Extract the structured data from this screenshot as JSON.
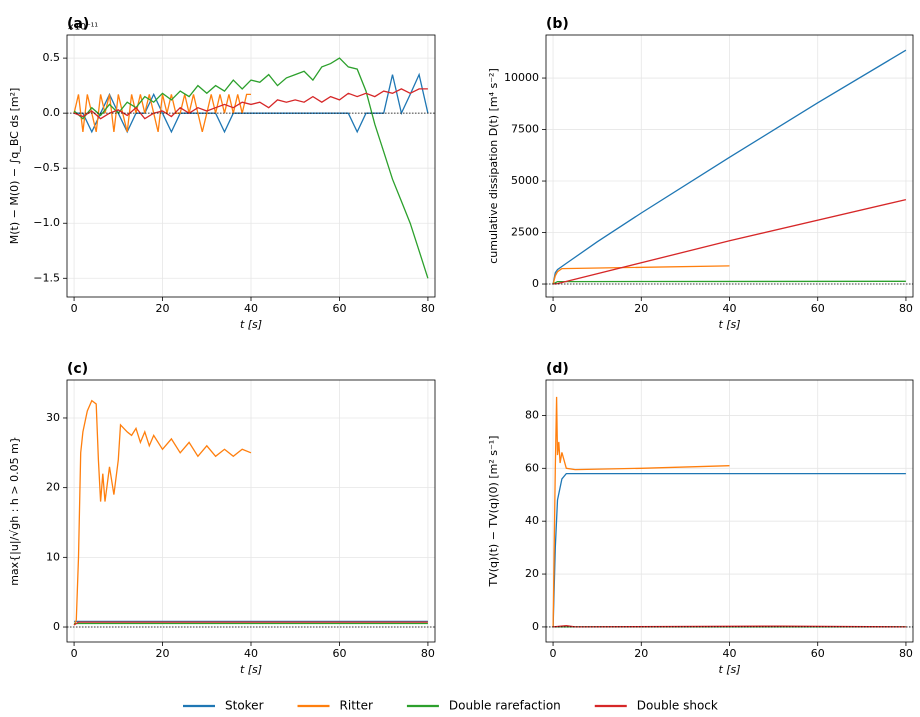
{
  "chart_data": [
    {
      "type": "line",
      "panel_label": "(a)",
      "offset_label": "×10⁻¹¹",
      "xlabel": "t  [s]",
      "ylabel": "M(t) − M(0) − ∫q_BC ds  [m²]",
      "xlim": [
        -1.6,
        81.6
      ],
      "ylim": [
        -1.67,
        0.71
      ],
      "xticks": [
        0,
        20,
        40,
        60,
        80
      ],
      "yticks": [
        {
          "value": -1.5,
          "label": "−1.5"
        },
        {
          "value": -1.0,
          "label": "−1.0"
        },
        {
          "value": -0.5,
          "label": "−0.5"
        },
        {
          "value": 0,
          "label": "0.0"
        },
        0.5
      ],
      "grid": true,
      "hline": 0,
      "series": [
        {
          "name": "Stoker",
          "color": "#1f77b4",
          "x": [
            0,
            2,
            4,
            6,
            8,
            10,
            12,
            14,
            16,
            18,
            20,
            22,
            24,
            26,
            28,
            30,
            32,
            34,
            36,
            38,
            40,
            42,
            44,
            46,
            48,
            50,
            52,
            54,
            56,
            58,
            60,
            62,
            64,
            66,
            68,
            70,
            72,
            74,
            76,
            78,
            80
          ],
          "values": [
            0,
            0,
            -0.17,
            0,
            0.17,
            0,
            -0.17,
            0,
            0,
            0.17,
            0,
            -0.17,
            0,
            0,
            0,
            0,
            0,
            -0.17,
            0,
            0,
            0,
            0,
            0,
            0,
            0,
            0,
            0,
            0,
            0,
            0,
            0,
            0,
            -0.17,
            0,
            0,
            0,
            0.35,
            0,
            0.17,
            0.35,
            0
          ]
        },
        {
          "name": "Ritter",
          "color": "#ff7f0e",
          "x": [
            0,
            1,
            2,
            3,
            4,
            5,
            6,
            7,
            8,
            9,
            10,
            11,
            12,
            13,
            14,
            15,
            16,
            17,
            18,
            19,
            20,
            21,
            22,
            23,
            24,
            25,
            26,
            27,
            28,
            29,
            30,
            31,
            32,
            33,
            34,
            35,
            36,
            37,
            38,
            39,
            40
          ],
          "values": [
            0,
            0.17,
            -0.17,
            0.17,
            0,
            -0.17,
            0.17,
            0,
            0.17,
            -0.17,
            0.17,
            0,
            -0.17,
            0.17,
            0,
            0.17,
            0,
            0.17,
            0,
            -0.17,
            0.17,
            0,
            0.17,
            0,
            0,
            0.17,
            0,
            0.17,
            0,
            -0.17,
            0,
            0.17,
            0,
            0.17,
            0,
            0.17,
            0,
            0.17,
            0,
            0.17,
            0.17
          ]
        },
        {
          "name": "Double rarefaction",
          "color": "#2ca02c",
          "x": [
            0,
            2,
            4,
            6,
            8,
            10,
            12,
            14,
            16,
            18,
            20,
            22,
            24,
            26,
            28,
            30,
            32,
            34,
            36,
            38,
            40,
            42,
            44,
            46,
            48,
            50,
            52,
            54,
            56,
            58,
            60,
            62,
            64,
            66,
            68,
            70,
            72,
            74,
            76,
            78,
            80
          ],
          "values": [
            0.02,
            -0.05,
            0.05,
            -0.02,
            0.08,
            0.0,
            0.1,
            0.05,
            0.15,
            0.1,
            0.18,
            0.12,
            0.2,
            0.15,
            0.25,
            0.18,
            0.25,
            0.2,
            0.3,
            0.22,
            0.3,
            0.28,
            0.35,
            0.25,
            0.32,
            0.35,
            0.38,
            0.3,
            0.42,
            0.45,
            0.5,
            0.42,
            0.4,
            0.2,
            -0.1,
            -0.35,
            -0.6,
            -0.8,
            -1.0,
            -1.25,
            -1.5
          ]
        },
        {
          "name": "Double shock",
          "color": "#d62728",
          "x": [
            0,
            2,
            4,
            6,
            8,
            10,
            12,
            14,
            16,
            18,
            20,
            22,
            24,
            26,
            28,
            30,
            32,
            34,
            36,
            38,
            40,
            42,
            44,
            46,
            48,
            50,
            52,
            54,
            56,
            58,
            60,
            62,
            64,
            66,
            68,
            70,
            72,
            74,
            76,
            78,
            80
          ],
          "values": [
            0,
            -0.03,
            0.02,
            -0.05,
            0,
            0.03,
            -0.02,
            0.05,
            -0.05,
            0.0,
            0.02,
            -0.03,
            0.05,
            0.0,
            0.05,
            0.02,
            0.05,
            0.08,
            0.05,
            0.1,
            0.08,
            0.1,
            0.05,
            0.12,
            0.1,
            0.12,
            0.1,
            0.15,
            0.1,
            0.15,
            0.12,
            0.18,
            0.15,
            0.18,
            0.15,
            0.2,
            0.18,
            0.22,
            0.18,
            0.22,
            0.22
          ]
        }
      ]
    },
    {
      "type": "line",
      "panel_label": "(b)",
      "xlabel": "t  [s]",
      "ylabel": "cumulative dissipation D(t)  [m⁴ s⁻²]",
      "xlim": [
        -1.6,
        81.6
      ],
      "ylim": [
        -630,
        12090
      ],
      "xticks": [
        0,
        20,
        40,
        60,
        80
      ],
      "yticks": [
        0,
        2500,
        5000,
        7500,
        10000
      ],
      "grid": true,
      "hline": 0,
      "series": [
        {
          "name": "Stoker",
          "color": "#1f77b4",
          "x": [
            0,
            0.5,
            1,
            3,
            10,
            20,
            40,
            60,
            80
          ],
          "values": [
            0,
            550,
            700,
            1000,
            2050,
            3450,
            6150,
            8800,
            11350
          ]
        },
        {
          "name": "Ritter",
          "color": "#ff7f0e",
          "x": [
            0,
            0.5,
            1,
            2,
            40
          ],
          "values": [
            0,
            400,
            600,
            750,
            880
          ]
        },
        {
          "name": "Double rarefaction",
          "color": "#2ca02c",
          "x": [
            0,
            1,
            80
          ],
          "values": [
            0,
            120,
            130
          ]
        },
        {
          "name": "Double shock",
          "color": "#d62728",
          "x": [
            0,
            1,
            40,
            80
          ],
          "values": [
            0,
            20,
            2100,
            4100
          ]
        }
      ]
    },
    {
      "type": "line",
      "panel_label": "(c)",
      "xlabel": "t  [s]",
      "ylabel": "max{|u|/√gh : h > 0.05 m}",
      "xlim": [
        -1.6,
        81.6
      ],
      "ylim": [
        -2.15,
        35.45
      ],
      "xticks": [
        0,
        20,
        40,
        60,
        80
      ],
      "yticks": [
        0,
        10,
        20,
        30
      ],
      "grid": true,
      "hline": 0,
      "series": [
        {
          "name": "Stoker",
          "color": "#1f77b4",
          "x": [
            0,
            80
          ],
          "values": [
            0.8,
            0.8
          ]
        },
        {
          "name": "Ritter",
          "color": "#ff7f0e",
          "x": [
            0,
            0.5,
            1,
            1.5,
            2,
            3,
            4,
            5,
            5.5,
            6,
            6.5,
            7,
            8,
            9,
            10,
            10.5,
            12,
            13,
            14,
            15,
            16,
            17,
            18,
            20,
            22,
            24,
            26,
            28,
            30,
            32,
            34,
            36,
            38,
            40
          ],
          "values": [
            0.3,
            1,
            10,
            25,
            28,
            31,
            32.5,
            32,
            24,
            18,
            22,
            18,
            23,
            19,
            24,
            29,
            28,
            27.5,
            28.5,
            26.5,
            28,
            26,
            27.5,
            25.5,
            27,
            25,
            26.5,
            24.5,
            26,
            24.5,
            25.5,
            24.5,
            25.5,
            25
          ]
        },
        {
          "name": "Double rarefaction",
          "color": "#2ca02c",
          "x": [
            0,
            80
          ],
          "values": [
            0.5,
            0.5
          ]
        },
        {
          "name": "Double shock",
          "color": "#d62728",
          "x": [
            0,
            1,
            80
          ],
          "values": [
            0.3,
            0.7,
            0.7
          ]
        }
      ]
    },
    {
      "type": "line",
      "panel_label": "(d)",
      "xlabel": "t  [s]",
      "ylabel": "TV(q)(t) − TV(q)(0)  [m² s⁻¹]",
      "xlim": [
        -1.6,
        81.6
      ],
      "ylim": [
        -5.7,
        93.4
      ],
      "xticks": [
        0,
        20,
        40,
        60,
        80
      ],
      "yticks": [
        0,
        20,
        40,
        60,
        80
      ],
      "grid": true,
      "hline": 0,
      "series": [
        {
          "name": "Stoker",
          "color": "#1f77b4",
          "x": [
            0,
            0.5,
            1,
            2,
            3,
            80
          ],
          "values": [
            0,
            30,
            48,
            56,
            58,
            58
          ]
        },
        {
          "name": "Ritter",
          "color": "#ff7f0e",
          "x": [
            0,
            0.5,
            0.8,
            1,
            1.3,
            1.6,
            2,
            3,
            5,
            20,
            40
          ],
          "values": [
            0,
            60,
            87,
            65,
            70,
            62,
            66,
            60,
            59.5,
            60,
            61
          ]
        },
        {
          "name": "Double rarefaction",
          "color": "#2ca02c",
          "x": [
            0,
            80
          ],
          "values": [
            0,
            0
          ]
        },
        {
          "name": "Double shock",
          "color": "#d62728",
          "x": [
            0,
            3,
            5,
            52,
            80
          ],
          "values": [
            0,
            0.5,
            0,
            0.3,
            0
          ]
        }
      ]
    }
  ]
}
